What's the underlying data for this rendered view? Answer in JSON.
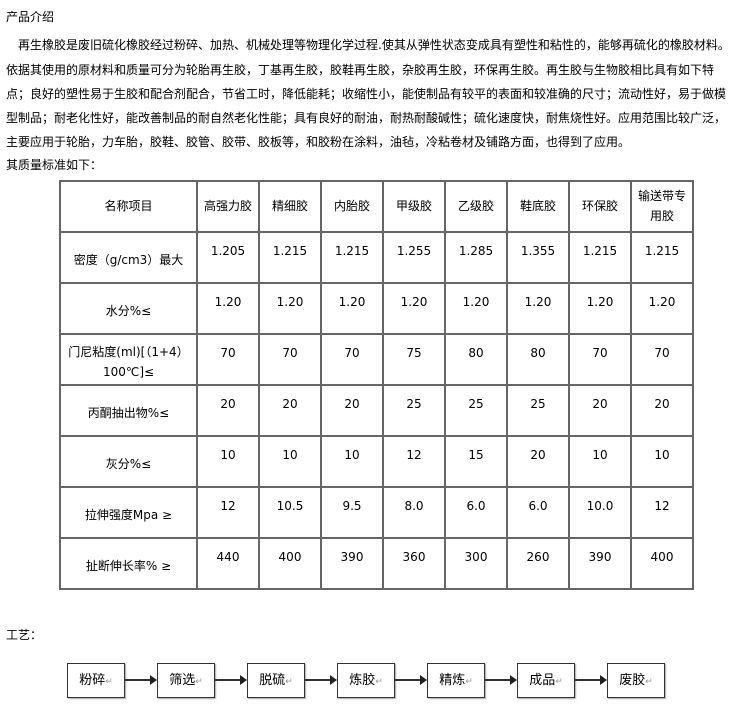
{
  "title": "产品介绍",
  "paragraph": [
    "　再生橡胶是废旧硫化橡胶经过粉碎、加热、机械处理等物理化学过程.使其从弹性状态变成具有塑性和粘性的，能够再硫化的橡胶材料。",
    "依据其使用的原材料和质量可分为轮胎再生胶，丁基再生胶，胶鞋再生胶，杂胶再生胶，环保再生胶。再生胶与生物胶相比具有如下特",
    "点；良好的塑性易于生胶和配合剂配合，节省工时，降低能耗；收缩性小，能使制品有较平的表面和较准确的尺寸；流动性好，易于做模",
    "型制品；耐老化性好，能改善制品的耐自然老化性能；具有良好的耐油，耐热耐酸碱性；硫化速度快，耐焦烧性好。应用范围比较广泛，",
    "主要应用于轮胎，力车胎，胶鞋、胶管、胶带、胶板等，和胶粉在涂料，油毡，冷粘卷材及铺路方面，也得到了应用。"
  ],
  "standard_intro": "其质量标准如下：",
  "table": {
    "headers": [
      "名称项目",
      "高强力胶",
      "精细胶",
      "内胎胶",
      "甲级胶",
      "乙级胶",
      "鞋底胶",
      "环保胶",
      "输送带专用胶"
    ],
    "rows": [
      {
        "label": "密度（g/cm3）最大",
        "values": [
          "1.205",
          "1.215",
          "1.215",
          "1.255",
          "1.285",
          "1.355",
          "1.215",
          "1.215"
        ]
      },
      {
        "label": "水分%≤",
        "values": [
          "1.20",
          "1.20",
          "1.20",
          "1.20",
          "1.20",
          "1.20",
          "1.20",
          "1.20"
        ]
      },
      {
        "label": "门尼粘度(ml)[（1+4）100℃]≤",
        "values": [
          "70",
          "70",
          "70",
          "75",
          "80",
          "80",
          "70",
          "70"
        ]
      },
      {
        "label": "丙酮抽出物%≤",
        "values": [
          "20",
          "20",
          "20",
          "25",
          "25",
          "25",
          "20",
          "20"
        ]
      },
      {
        "label": "灰分%≤",
        "values": [
          "10",
          "10",
          "10",
          "12",
          "15",
          "20",
          "10",
          "10"
        ]
      },
      {
        "label": "拉伸强度Mpa ≥",
        "values": [
          "12",
          "10.5",
          "9.5",
          "8.0",
          "6.0",
          "6.0",
          "10.0",
          "12"
        ]
      },
      {
        "label": "扯断伸长率% ≥",
        "values": [
          "440",
          "400",
          "390",
          "360",
          "300",
          "260",
          "390",
          "400"
        ]
      }
    ]
  },
  "process_label": "工艺：",
  "process_steps": [
    "粉碎",
    "筛选",
    "脱硫",
    "炼胶",
    "精炼",
    "成品",
    "废胶"
  ]
}
